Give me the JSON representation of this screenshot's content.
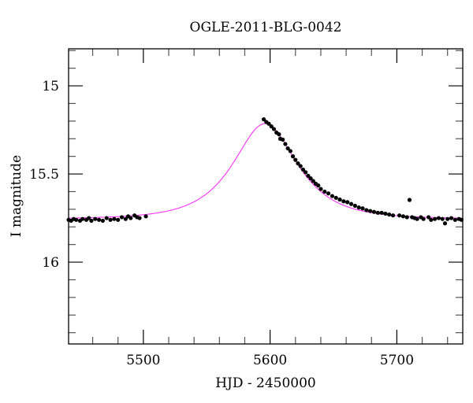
{
  "chart_data": {
    "type": "scatter",
    "title": "OGLE-2011-BLG-0042",
    "xlabel": "HJD - 2450000",
    "ylabel": "I magnitude",
    "xlim": [
      5441,
      5752
    ],
    "ylim": [
      16.464,
      14.79
    ],
    "y_inverted": true,
    "grid": false,
    "x_ticks": [
      5500,
      5600,
      5700
    ],
    "x_tick_labels": [
      "5500",
      "5600",
      "5700"
    ],
    "x_minor_step": 20,
    "y_ticks": [
      15,
      15.5,
      16
    ],
    "y_tick_labels": [
      "15",
      "15.5",
      "16"
    ],
    "y_minor_step": 0.1,
    "colors": {
      "model": "#ff33ff",
      "points": "#000000"
    },
    "model": {
      "type": "Paczynski point-lens",
      "t0": 5596,
      "tE": 36,
      "u0": 0.72,
      "baseline_mag": 15.755
    },
    "observations": [
      [
        5441,
        15.76
      ],
      [
        5443,
        15.765
      ],
      [
        5445,
        15.755
      ],
      [
        5447,
        15.76
      ],
      [
        5450,
        15.765
      ],
      [
        5452,
        15.755
      ],
      [
        5455,
        15.76
      ],
      [
        5457,
        15.75
      ],
      [
        5459,
        15.765
      ],
      [
        5462,
        15.755
      ],
      [
        5465,
        15.76
      ],
      [
        5468,
        15.765
      ],
      [
        5471,
        15.75
      ],
      [
        5474,
        15.76
      ],
      [
        5477,
        15.755
      ],
      [
        5480,
        15.76
      ],
      [
        5483,
        15.745
      ],
      [
        5486,
        15.755
      ],
      [
        5488,
        15.74
      ],
      [
        5490,
        15.75
      ],
      [
        5493,
        15.735
      ],
      [
        5495,
        15.745
      ],
      [
        5497,
        15.75
      ],
      [
        5502,
        15.74
      ],
      [
        5595,
        15.19
      ],
      [
        5597,
        15.205
      ],
      [
        5599,
        15.215
      ],
      [
        5601,
        15.23
      ],
      [
        5603,
        15.245
      ],
      [
        5605,
        15.265
      ],
      [
        5607,
        15.275
      ],
      [
        5608,
        15.3
      ],
      [
        5610,
        15.305
      ],
      [
        5612,
        15.33
      ],
      [
        5614,
        15.355
      ],
      [
        5616,
        15.37
      ],
      [
        5618,
        15.4
      ],
      [
        5620,
        15.42
      ],
      [
        5622,
        15.44
      ],
      [
        5624,
        15.455
      ],
      [
        5626,
        15.475
      ],
      [
        5628,
        15.49
      ],
      [
        5630,
        15.51
      ],
      [
        5632,
        15.525
      ],
      [
        5634,
        15.54
      ],
      [
        5636,
        15.555
      ],
      [
        5638,
        15.565
      ],
      [
        5640,
        15.585
      ],
      [
        5643,
        15.6
      ],
      [
        5646,
        15.61
      ],
      [
        5649,
        15.625
      ],
      [
        5652,
        15.635
      ],
      [
        5655,
        15.645
      ],
      [
        5658,
        15.655
      ],
      [
        5661,
        15.66
      ],
      [
        5664,
        15.67
      ],
      [
        5667,
        15.68
      ],
      [
        5670,
        15.69
      ],
      [
        5673,
        15.695
      ],
      [
        5676,
        15.705
      ],
      [
        5679,
        15.71
      ],
      [
        5682,
        15.715
      ],
      [
        5685,
        15.72
      ],
      [
        5688,
        15.72
      ],
      [
        5691,
        15.725
      ],
      [
        5694,
        15.73
      ],
      [
        5697,
        15.735
      ],
      [
        5702,
        15.735
      ],
      [
        5705,
        15.74
      ],
      [
        5708,
        15.745
      ],
      [
        5710,
        15.647
      ],
      [
        5712,
        15.745
      ],
      [
        5714,
        15.75
      ],
      [
        5716,
        15.755
      ],
      [
        5719,
        15.745
      ],
      [
        5721,
        15.755
      ],
      [
        5725,
        15.745
      ],
      [
        5727,
        15.76
      ],
      [
        5730,
        15.755
      ],
      [
        5733,
        15.75
      ],
      [
        5736,
        15.755
      ],
      [
        5738,
        15.78
      ],
      [
        5740,
        15.755
      ],
      [
        5743,
        15.75
      ],
      [
        5746,
        15.76
      ],
      [
        5749,
        15.755
      ],
      [
        5751,
        15.76
      ]
    ]
  }
}
